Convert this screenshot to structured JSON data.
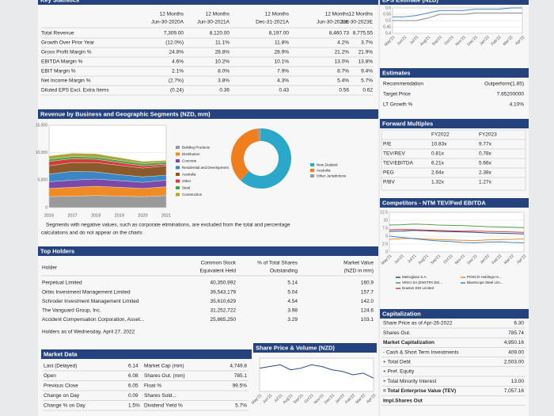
{
  "key_stats": {
    "title": "Key Statistics",
    "headers": [
      [
        "12 Months",
        "Jun-30-2020A"
      ],
      [
        "12 Months",
        "Jun-30-2021A"
      ],
      [
        "12 Months",
        "Dec-31-2021A"
      ],
      [
        "12 Months",
        "Jun-30-2022E"
      ],
      [
        "12 Months",
        "Jun-30-2023E"
      ]
    ],
    "rows": [
      [
        "Total Revenue",
        "7,309.00",
        "8,120.00",
        "8,197.00",
        "8,460.73",
        "8,775.55"
      ],
      [
        "Growth Over Prior Year",
        "(12.0%)",
        "11.1%",
        "11.8%",
        "4.2%",
        "3.7%"
      ],
      [
        "Gross Profit Margin %",
        "24.8%",
        "28.8%",
        "28.9%",
        "21.2%",
        "21.9%"
      ],
      [
        "EBITDA Margin %",
        "4.6%",
        "10.2%",
        "10.1%",
        "13.0%",
        "13.8%"
      ],
      [
        "EBIT Margin %",
        "2.1%",
        "8.0%",
        "7.9%",
        "8.7%",
        "9.4%"
      ],
      [
        "Net Income Margin %",
        "(2.7%)",
        "3.8%",
        "4.3%",
        "5.4%",
        "5.7%"
      ],
      [
        "Diluted EPS Excl. Extra Items",
        "(0.24)",
        "0.36",
        "0.43",
        "0.56",
        "0.62"
      ]
    ]
  },
  "eps_estimate": {
    "title": "EPS Estimate (NZD)",
    "type": "line",
    "x": [
      "May'21",
      "Jun'21",
      "Jul'21",
      "Aug'21",
      "Sep'21",
      "Oct'21",
      "Nov'21",
      "Dec'21",
      "Jan'22",
      "Feb'22",
      "Mar'22",
      "Apr'22"
    ],
    "ylim": [
      0.4,
      0.6
    ],
    "yticks": [
      0.6,
      0.55,
      0.5,
      0.45,
      0.4
    ],
    "series": [
      {
        "name": "FY2022",
        "color": "#888888",
        "values": [
          0.5,
          0.5,
          0.5,
          0.52,
          0.55,
          0.55,
          0.55,
          0.56,
          0.56,
          0.56,
          0.56,
          0.56
        ]
      },
      {
        "name": "FY2023",
        "color": "#4a86c8",
        "values": [
          0.53,
          0.53,
          0.54,
          0.56,
          0.58,
          0.58,
          0.58,
          0.59,
          0.59,
          0.59,
          0.6,
          0.6
        ]
      }
    ]
  },
  "estimates": {
    "title": "Estimates",
    "rows": [
      [
        "Recommendation",
        "Outperform(1.85)"
      ],
      [
        "Target Price",
        "7.65200000"
      ],
      [
        "LT Growth %",
        "4.10%"
      ]
    ]
  },
  "revenue": {
    "title": "Revenue by Business and Geographic Segments (NZD, mm)",
    "type": "area",
    "x": [
      "2016",
      "2017",
      "2018",
      "2019",
      "2020",
      "2021"
    ],
    "ylim": [
      0,
      15000
    ],
    "yticks": [
      {
        "value": 15000,
        "label": "15,000"
      },
      {
        "value": 10000,
        "label": "10,000"
      },
      {
        "value": 5000,
        "label": "5,000"
      },
      0
    ],
    "series": [
      {
        "name": "Building Products",
        "color": "#9a9a9a",
        "values": [
          2000,
          2100,
          2200,
          2100,
          2000,
          2200
        ]
      },
      {
        "name": "Distribution",
        "color": "#f08a24",
        "values": [
          1500,
          1600,
          1700,
          1600,
          1500,
          1600
        ]
      },
      {
        "name": "Concrete",
        "color": "#7b4aa8",
        "values": [
          1200,
          1300,
          1300,
          1200,
          1100,
          1200
        ]
      },
      {
        "name": "Residential and Development",
        "color": "#3d86c6",
        "values": [
          1400,
          1600,
          1300,
          1100,
          1000,
          900
        ]
      },
      {
        "name": "Australia",
        "color": "#8b5a2b",
        "values": [
          1500,
          1600,
          1700,
          1700,
          1600,
          1700
        ]
      },
      {
        "name": "Other",
        "color": "#d63a3a",
        "values": [
          800,
          700,
          600,
          500,
          400,
          300
        ]
      },
      {
        "name": "Steel",
        "color": "#4fa04a",
        "values": [
          400,
          400,
          400,
          400,
          400,
          400
        ]
      },
      {
        "name": "Construction",
        "color": "#a8a83a",
        "values": [
          600,
          600,
          600,
          500,
          400,
          300
        ]
      }
    ],
    "donut": {
      "categories": [
        "New Zealand",
        "Australia",
        "Other Jurisdictions"
      ],
      "values": [
        62,
        36,
        2
      ],
      "colors": [
        "#2aa7c9",
        "#f07e1f",
        "#9a9a9a"
      ]
    },
    "note": "Segments with negative values, such as corporate eliminations, are excluded from the total and percentage",
    "note2": "calculations and do not appear on the charts"
  },
  "forward_multiples": {
    "title": "Forward Multiples",
    "headers": [
      "FY2022",
      "FY2023"
    ],
    "rows": [
      [
        "P/E",
        "10.83x",
        "9.77x"
      ],
      [
        "TEV/REV",
        "0.81x",
        "0.78x"
      ],
      [
        "TEV/EBITDA",
        "6.21x",
        "5.66x"
      ],
      [
        "PEG",
        "2.64x",
        "2.38x"
      ],
      [
        "P/BV",
        "1.32x",
        "1.27x"
      ]
    ]
  },
  "competitors": {
    "title": "Competitors - NTM TEV/Fwd EBITDA",
    "type": "line",
    "x": [
      "May'21",
      "Jun'21",
      "Jul'21",
      "Aug'21",
      "Sep'21",
      "Oct'21",
      "Nov'21",
      "Dec'21",
      "Jan'22",
      "Feb'22",
      "Mar'22",
      "Apr'22"
    ],
    "ylim": [
      0,
      12.5
    ],
    "yticks": [
      12.5,
      10.0,
      7.5,
      5.0,
      2.5,
      0.0
    ],
    "series": [
      {
        "name": "Metroglass S.A.",
        "color": "#2b4c8c",
        "values": [
          6.5,
          6.6,
          6.8,
          6.7,
          6.5,
          6.4,
          6.3,
          6.2,
          6.0,
          5.9,
          5.8,
          5.7
        ]
      },
      {
        "name": "POSCO Holdings In...",
        "color": "#f08a24",
        "values": [
          4.0,
          4.2,
          4.3,
          4.1,
          3.9,
          3.8,
          3.7,
          3.6,
          3.8,
          3.9,
          4.0,
          4.1
        ]
      },
      {
        "name": "VINCI SA (ENXTPA:DG...",
        "color": "#4fa04a",
        "values": [
          8.5,
          8.6,
          8.8,
          8.7,
          8.5,
          8.4,
          8.3,
          8.2,
          8.0,
          7.9,
          7.8,
          7.7
        ]
      },
      {
        "name": "BlueScope Steel Lim...",
        "color": "#3d86c6",
        "values": [
          5.0,
          4.6,
          4.2,
          3.8,
          3.5,
          3.3,
          3.0,
          2.9,
          3.1,
          3.2,
          3.0,
          2.9
        ]
      },
      {
        "name": "Downer EDI Limited",
        "color": "#d63a3a",
        "values": [
          7.0,
          7.1,
          7.0,
          6.9,
          6.8,
          6.7,
          6.6,
          6.6,
          6.5,
          6.4,
          6.3,
          6.2
        ]
      }
    ]
  },
  "top_holders": {
    "title": "Top Holders",
    "headers": [
      [
        "Holder"
      ],
      [
        "Common Stock",
        "Equivalent Held"
      ],
      [
        "% of Total Shares",
        "Outstanding"
      ],
      [
        "Market Value",
        "(NZD in mm)"
      ]
    ],
    "rows": [
      [
        "Perpetual Limited",
        "40,350,992",
        "5.14",
        "160.9"
      ],
      [
        "Orbis Investment Management Limited",
        "39,543,179",
        "5.04",
        "157.7"
      ],
      [
        "Schroder Investment Management Limited",
        "35,610,629",
        "4.54",
        "142.0"
      ],
      [
        "The Vanguard Group, Inc.",
        "31,252,722",
        "3.98",
        "124.6"
      ],
      [
        "Accident Compensation Corporation, Asset...",
        "25,865,250",
        "3.29",
        "103.1"
      ]
    ],
    "footer": "Holders as of Wednesday, April 27, 2022"
  },
  "market_data": {
    "title": "Market Data",
    "rows": [
      [
        "Last (Delayed)",
        "6.14",
        "Market Cap (mm)",
        "4,749.8"
      ],
      [
        "Open",
        "6.08",
        "Shares Out. (mm)",
        "785.1"
      ],
      [
        "Previous Close",
        "6.05",
        "Float %",
        "99.5%"
      ],
      [
        "Change on Day",
        "0.09",
        "Shares Sold..."
      ],
      [
        "Change % on Day",
        "1.5%",
        "Dividend Yield %",
        "5.7%"
      ]
    ]
  },
  "share_price": {
    "title": "Share Price & Volume (NZD)",
    "type": "line",
    "x": [
      "May'21",
      "Jun'21",
      "Jul'21",
      "Aug'21",
      "Sep'21",
      "Oct'21",
      "Nov'21",
      "Dec'21",
      "Jan'22",
      "Feb'22",
      "Mar'22",
      "Apr'22"
    ],
    "ylim": [
      5.5,
      7.5
    ],
    "series": [
      {
        "name": "Share Price",
        "color": "#2b4c8c",
        "values": [
          6.9,
          7.0,
          7.1,
          6.8,
          6.9,
          7.1,
          7.0,
          6.8,
          6.7,
          6.5,
          6.6,
          6.3
        ]
      }
    ]
  },
  "capitalization": {
    "title": "Capitalization",
    "rows": [
      {
        "label": "Share Price as of Apr-26-2022",
        "value": "6.30"
      },
      {
        "label": "Shares Out.",
        "value": "785.74"
      },
      {
        "label": "Market Capitalization",
        "value": "4,950.16",
        "bold": true
      },
      {
        "label": "- Cash & Short Term Investments",
        "value": "409.00"
      },
      {
        "label": "+ Total Debt",
        "value": "2,503.00"
      },
      {
        "label": "+ Pref. Equity"
      },
      {
        "label": "+ Total Minority Interest",
        "value": "13.00"
      },
      {
        "label": "= Total Enterprise Value (TEV)",
        "value": "7,057.16",
        "bold": true
      },
      {
        "label": "Impl.Shares Out",
        "bold": true
      }
    ]
  }
}
